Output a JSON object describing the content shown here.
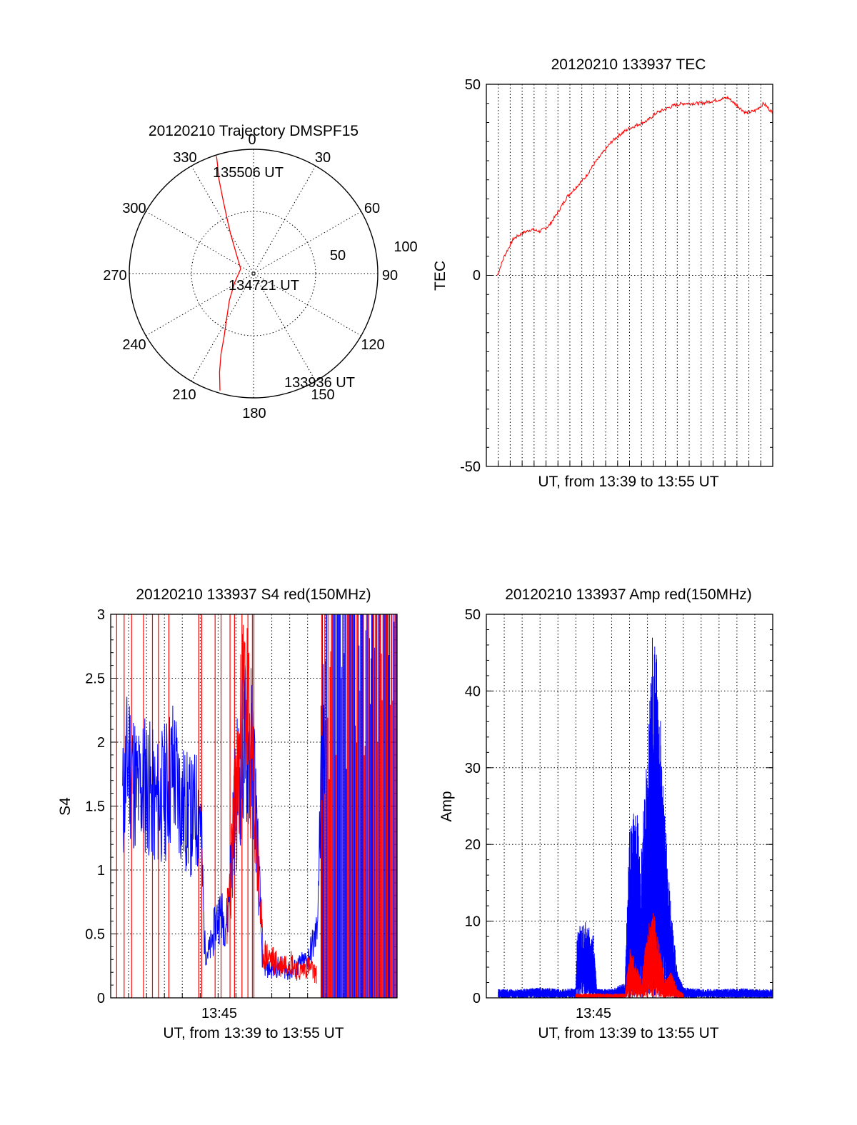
{
  "colors": {
    "red_series": "#ff0000",
    "blue_series": "#0000ff",
    "axes": "#000000"
  },
  "chart_data": [
    {
      "id": "trajectory",
      "type": "polar",
      "title": "20120210 Trajectory DMSPF15",
      "angle_labels": [
        "0",
        "30",
        "60",
        "90",
        "120",
        "150",
        "180",
        "210",
        "240",
        "270",
        "300",
        "330"
      ],
      "radius_labels": [
        "50",
        "100"
      ],
      "rlim": [
        0,
        100
      ],
      "grid": true,
      "series": [
        {
          "color": "#ff0000",
          "az": [
            196,
            199,
            202,
            205,
            211,
            222,
            244,
            290,
            320,
            330,
            335,
            338,
            340,
            341.5,
            342.5
          ],
          "zen": [
            98,
            84,
            70,
            56,
            42,
            29,
            17,
            11,
            22,
            37,
            52,
            67,
            82,
            91,
            99
          ]
        }
      ],
      "annotations": [
        {
          "text": "135506 UT",
          "az": 341,
          "zen": 95
        },
        {
          "text": "134721 UT",
          "az": 160,
          "zen": 15
        },
        {
          "text": "133936 UT",
          "az": 200,
          "zen": 95
        }
      ]
    },
    {
      "id": "tec",
      "type": "line",
      "title": "20120210 133937 TEC",
      "xlabel": "UT, from 13:39 to 13:55 UT",
      "ylabel": "TEC",
      "xlim": [
        "13:39",
        "13:55"
      ],
      "ylim": [
        -50,
        50
      ],
      "yticks": [
        "-50",
        "0",
        "50"
      ],
      "xticks": [],
      "grid": true,
      "series": [
        {
          "color": "#ff0000",
          "x": [
            "13:39:37",
            "13:40:00",
            "13:40:30",
            "13:41:00",
            "13:41:30",
            "13:42:00",
            "13:42:30",
            "13:43:00",
            "13:43:30",
            "13:44:00",
            "13:44:30",
            "13:45:00",
            "13:45:30",
            "13:46:00",
            "13:46:30",
            "13:47:00",
            "13:47:30",
            "13:48:00",
            "13:48:30",
            "13:49:00",
            "13:49:30",
            "13:50:00",
            "13:50:30",
            "13:51:00",
            "13:51:30",
            "13:52:00",
            "13:52:30",
            "13:53:00",
            "13:53:30",
            "13:54:00",
            "13:54:30",
            "13:55:00"
          ],
          "y": [
            0,
            5,
            9.5,
            11,
            12,
            11.5,
            13,
            16.5,
            20.5,
            23,
            25.5,
            29,
            32,
            35,
            37,
            38.5,
            39.5,
            40.5,
            42.5,
            43.5,
            44.5,
            45,
            45,
            45,
            45.5,
            46,
            46.5,
            44.5,
            42.5,
            43,
            45,
            42.5
          ]
        }
      ]
    },
    {
      "id": "s4",
      "type": "line",
      "title": "20120210 133937 S4 red(150MHz)",
      "xlabel": "UT, from 13:39 to 13:55 UT",
      "ylabel": "S4",
      "xlim": [
        "13:39",
        "13:55"
      ],
      "ylim": [
        0,
        3
      ],
      "yticks": [
        "0",
        "0.5",
        "1",
        "1.5",
        "2",
        "2.5",
        "3"
      ],
      "xticks": [
        "13:45"
      ],
      "grid": true,
      "series": [
        {
          "color": "#0000ff",
          "x": [
            "13:39:40",
            "13:40:00",
            "13:40:30",
            "13:41:00",
            "13:41:30",
            "13:42:00",
            "13:42:30",
            "13:43:00",
            "13:43:30",
            "13:44:00",
            "13:44:15",
            "13:44:30",
            "13:45:00",
            "13:45:30",
            "13:46:00",
            "13:46:30",
            "13:47:00",
            "13:47:30",
            "13:48:00",
            "13:48:30",
            "13:49:00",
            "13:49:30",
            "13:50:00",
            "13:50:30",
            "13:51:00"
          ],
          "y": [
            1.5,
            1.9,
            1.6,
            1.7,
            1.5,
            1.6,
            1.8,
            1.5,
            1.4,
            1.5,
            0.4,
            0.35,
            0.65,
            0.6,
            1.6,
            2.0,
            1.8,
            0.25,
            0.22,
            0.25,
            0.2,
            0.25,
            0.3,
            0.5,
            2.5
          ]
        },
        {
          "color": "#ff0000",
          "x": [
            "13:45:30",
            "13:46:00",
            "13:46:30",
            "13:47:00",
            "13:47:30",
            "13:48:00",
            "13:48:30",
            "13:49:00",
            "13:49:30",
            "13:50:00",
            "13:50:30"
          ],
          "y": [
            0.6,
            1.5,
            2.4,
            1.6,
            0.35,
            0.3,
            0.25,
            0.3,
            0.2,
            0.25,
            0.18
          ]
        }
      ]
    },
    {
      "id": "amp",
      "type": "line",
      "title": "20120210 133937 Amp red(150MHz)",
      "xlabel": "UT, from 13:39 to 13:55 UT",
      "ylabel": "Amp",
      "xlim": [
        "13:39",
        "13:55"
      ],
      "ylim": [
        0,
        50
      ],
      "yticks": [
        "0",
        "10",
        "20",
        "30",
        "40",
        "50"
      ],
      "xticks": [
        "13:45"
      ],
      "grid": true,
      "series": [
        {
          "color": "#0000ff",
          "x": [
            "13:39:40",
            "13:41:00",
            "13:42:00",
            "13:43:00",
            "13:44:00",
            "13:44:05",
            "13:44:30",
            "13:45:00",
            "13:45:10",
            "13:46:00",
            "13:46:30",
            "13:46:45",
            "13:47:00",
            "13:47:20",
            "13:47:40",
            "13:48:00",
            "13:48:20",
            "13:48:40",
            "13:49:00",
            "13:49:20",
            "13:49:40",
            "13:50:00",
            "13:51:00",
            "13:52:00",
            "13:53:00",
            "13:54:00",
            "13:55:00"
          ],
          "y": [
            1,
            1,
            1.2,
            1,
            1.1,
            8,
            9,
            7,
            1,
            1,
            1.5,
            2,
            20,
            22,
            18,
            28,
            44,
            35,
            20,
            10,
            3,
            1.2,
            1,
            1,
            1.1,
            1,
            1
          ]
        },
        {
          "color": "#ff0000",
          "x": [
            "13:44:00",
            "13:44:30",
            "13:45:00",
            "13:46:45",
            "13:47:00",
            "13:47:20",
            "13:47:40",
            "13:48:00",
            "13:48:20",
            "13:48:40",
            "13:49:00",
            "13:49:20",
            "13:49:40",
            "13:50:00"
          ],
          "y": [
            0.5,
            0.5,
            0.5,
            0.5,
            6,
            4,
            2,
            8,
            10,
            6,
            2,
            3,
            1,
            0.5
          ]
        }
      ]
    }
  ]
}
